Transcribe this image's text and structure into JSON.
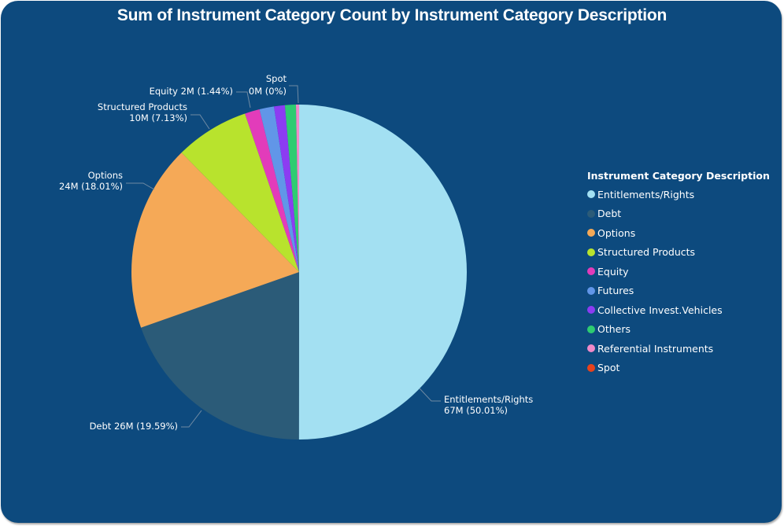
{
  "chart_data": {
    "type": "pie",
    "title": "Sum of Instrument Category Count by Instrument Category Description",
    "legend_title": "Instrument Category Description",
    "legend_position": "right",
    "categories": [
      "Entitlements/Rights",
      "Debt",
      "Options",
      "Structured Products",
      "Equity",
      "Futures",
      "Collective Invest.Vehicles",
      "Others",
      "Referential Instruments",
      "Spot"
    ],
    "values_millions": [
      67,
      26,
      24,
      10,
      2,
      1.9,
      1.4,
      1.4,
      0.4,
      0
    ],
    "percentages": [
      50.01,
      19.59,
      18.01,
      7.13,
      1.44,
      1.4,
      1.05,
      1.05,
      0.3,
      0
    ],
    "colors": [
      "#a3e0f2",
      "#2b5b78",
      "#f5a957",
      "#b8e32d",
      "#e23cba",
      "#6196e8",
      "#8c3cf2",
      "#2ecc71",
      "#f08ac8",
      "#e8421c"
    ],
    "data_labels": [
      {
        "category": "Entitlements/Rights",
        "line1": "Entitlements/Rights",
        "line2": "67M (50.01%)"
      },
      {
        "category": "Debt",
        "line1": "Debt 26M (19.59%)",
        "line2": ""
      },
      {
        "category": "Options",
        "line1": "Options",
        "line2": "24M (18.01%)"
      },
      {
        "category": "Structured Products",
        "line1": "Structured Products",
        "line2": "10M (7.13%)"
      },
      {
        "category": "Equity",
        "line1": "Equity 2M (1.44%)",
        "line2": ""
      },
      {
        "category": "Spot",
        "line1": "Spot",
        "line2": "0M (0%)"
      }
    ]
  },
  "header": {
    "title": "Sum of Instrument Category Count by Instrument Category Description"
  },
  "legend": {
    "title": "Instrument Category Description",
    "items": [
      {
        "label": "Entitlements/Rights",
        "color": "#a3e0f2"
      },
      {
        "label": "Debt",
        "color": "#2b5b78"
      },
      {
        "label": "Options",
        "color": "#f5a957"
      },
      {
        "label": "Structured Products",
        "color": "#b8e32d"
      },
      {
        "label": "Equity",
        "color": "#e23cba"
      },
      {
        "label": "Futures",
        "color": "#6196e8"
      },
      {
        "label": "Collective Invest.Vehicles",
        "color": "#8c3cf2"
      },
      {
        "label": "Others",
        "color": "#2ecc71"
      },
      {
        "label": "Referential Instruments",
        "color": "#f08ac8"
      },
      {
        "label": "Spot",
        "color": "#e8421c"
      }
    ]
  },
  "theme": {
    "background": "#0d4a7e",
    "text": "#ffffff",
    "leader_line": "#6f8aa3"
  }
}
